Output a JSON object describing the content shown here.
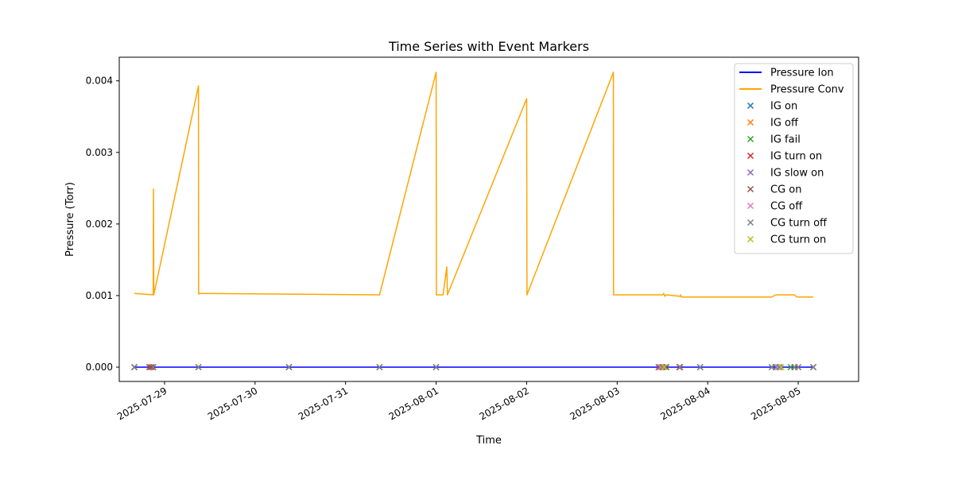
{
  "chart_data": {
    "type": "line",
    "title": "Time Series with Event Markers",
    "xlabel": "Time",
    "ylabel": "Pressure (Torr)",
    "x_ticks": [
      "2025-07-29",
      "2025-07-30",
      "2025-07-31",
      "2025-08-01",
      "2025-08-02",
      "2025-08-03",
      "2025-08-04",
      "2025-08-05"
    ],
    "y_ticks": [
      "0.000",
      "0.001",
      "0.002",
      "0.003",
      "0.004"
    ],
    "xlim": [
      "2025-07-28 12:00",
      "2025-08-05 16:00"
    ],
    "ylim": [
      -0.0002,
      0.00433
    ],
    "grid": false,
    "legend_position": "upper right",
    "series": [
      {
        "name": "Pressure Ion",
        "color": "#0000ff",
        "x": [
          "2025-07-28 16:00",
          "2025-08-01 00:00",
          "2025-08-03 12:00",
          "2025-08-05 04:00"
        ],
        "y": [
          0.0,
          0.0,
          0.0,
          0.0
        ]
      },
      {
        "name": "Pressure Conv",
        "color": "#ffa500",
        "x": [
          "2025-07-28 16:00",
          "2025-07-28 21:00",
          "2025-07-28 21:05",
          "2025-07-28 21:10",
          "2025-07-29 09:00",
          "2025-07-29 09:02",
          "2025-07-29 09:05",
          "2025-07-30 09:00",
          "2025-07-31 09:00",
          "2025-08-01 00:00",
          "2025-08-01 00:05",
          "2025-08-01 01:50",
          "2025-08-01 02:50",
          "2025-08-01 03:00",
          "2025-08-02 00:00",
          "2025-08-02 00:05",
          "2025-08-02 23:00",
          "2025-08-02 23:02",
          "2025-08-03 12:00",
          "2025-08-03 12:20",
          "2025-08-03 12:40",
          "2025-08-03 13:00",
          "2025-08-03 16:40",
          "2025-08-03 16:50",
          "2025-08-03 17:00",
          "2025-08-04 17:00",
          "2025-08-04 18:00",
          "2025-08-04 23:00",
          "2025-08-04 23:40",
          "2025-08-05 04:00"
        ],
        "y": [
          0.00103,
          0.00101,
          0.00249,
          0.00101,
          0.00393,
          0.00102,
          0.00103,
          0.00102,
          0.00101,
          0.00412,
          0.00101,
          0.00101,
          0.0014,
          0.00101,
          0.00375,
          0.00101,
          0.00412,
          0.00101,
          0.00101,
          0.00103,
          0.00099,
          0.00101,
          0.00099,
          0.00101,
          0.00098,
          0.00098,
          0.00101,
          0.00101,
          0.00098,
          0.00098
        ]
      }
    ],
    "event_markers": [
      {
        "name": "IG on",
        "color": "#1f77b4",
        "x": [
          "2025-07-28 16:00",
          "2025-07-28 20:00",
          "2025-08-01 00:00",
          "2025-08-03 12:00",
          "2025-08-04 18:00"
        ],
        "y": [
          0,
          0,
          0,
          0,
          0
        ]
      },
      {
        "name": "IG off",
        "color": "#ff7f0e",
        "x": [
          "2025-07-28 21:00",
          "2025-07-29 09:00",
          "2025-08-03 11:00",
          "2025-08-04 23:00"
        ],
        "y": [
          0,
          0,
          0,
          0
        ]
      },
      {
        "name": "IG fail",
        "color": "#2ca02c",
        "x": [
          "2025-08-03 13:00",
          "2025-08-04 22:00"
        ],
        "y": [
          0,
          0
        ]
      },
      {
        "name": "IG turn on",
        "color": "#d62728",
        "x": [
          "2025-07-28 20:30",
          "2025-08-03 11:30",
          "2025-08-03 16:30"
        ],
        "y": [
          0,
          0,
          0
        ]
      },
      {
        "name": "IG slow on",
        "color": "#9467bd",
        "x": [
          "2025-07-30 09:00",
          "2025-07-31 09:00",
          "2025-08-03 22:00",
          "2025-08-05 04:00"
        ],
        "y": [
          0,
          0,
          0,
          0
        ]
      },
      {
        "name": "CG on",
        "color": "#8c564b",
        "x": [
          "2025-07-28 16:00",
          "2025-07-28 20:00",
          "2025-07-28 21:00",
          "2025-07-29 09:00",
          "2025-07-30 09:00",
          "2025-07-31 09:00",
          "2025-08-01 00:00",
          "2025-08-03 11:00",
          "2025-08-03 12:00",
          "2025-08-03 13:00",
          "2025-08-03 16:40",
          "2025-08-03 22:00",
          "2025-08-04 17:00",
          "2025-08-04 19:00",
          "2025-08-04 23:00",
          "2025-08-05 00:00",
          "2025-08-05 04:00"
        ],
        "y": [
          0,
          0,
          0,
          0,
          0,
          0,
          0,
          0,
          0,
          0,
          0,
          0,
          0,
          0,
          0,
          0,
          0
        ]
      },
      {
        "name": "CG off",
        "color": "#e377c2",
        "x": [
          "2025-08-03 11:30",
          "2025-08-04 18:30"
        ],
        "y": [
          0,
          0
        ]
      },
      {
        "name": "CG turn off",
        "color": "#7f7f7f",
        "x": [
          "2025-07-28 16:00",
          "2025-07-28 21:00",
          "2025-07-29 09:00",
          "2025-07-30 09:00",
          "2025-07-31 09:00",
          "2025-08-01 00:00",
          "2025-08-03 12:00",
          "2025-08-03 16:40",
          "2025-08-03 22:00",
          "2025-08-04 17:00",
          "2025-08-04 19:00",
          "2025-08-04 23:00",
          "2025-08-05 00:00",
          "2025-08-05 04:00"
        ],
        "y": [
          0,
          0,
          0,
          0,
          0,
          0,
          0,
          0,
          0,
          0,
          0,
          0,
          0,
          0
        ]
      },
      {
        "name": "CG turn on",
        "color": "#bcbd22",
        "x": [
          "2025-08-03 12:30",
          "2025-08-04 19:30"
        ],
        "y": [
          0,
          0
        ]
      }
    ]
  }
}
